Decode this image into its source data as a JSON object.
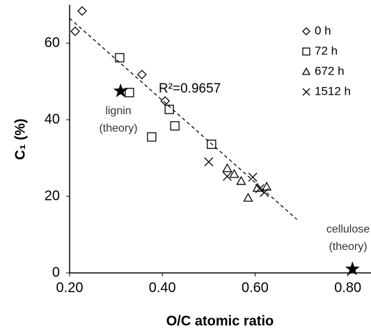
{
  "chart_data": {
    "type": "scatter",
    "xlabel": "O/C atomic ratio",
    "ylabel": "C₁ (%)",
    "xlim": [
      0.2,
      0.85
    ],
    "ylim": [
      0,
      70
    ],
    "xticks": [
      {
        "value": 0.2,
        "label": "0.20"
      },
      {
        "value": 0.4,
        "label": "0.40"
      },
      {
        "value": 0.6,
        "label": "0.60"
      },
      {
        "value": 0.8,
        "label": "0.80"
      }
    ],
    "yticks": [
      0,
      20,
      40,
      60
    ],
    "series": [
      {
        "name": "0 h",
        "marker": "diamond",
        "color": "#000000",
        "x": [
          0.227,
          0.212,
          0.356,
          0.406
        ],
        "values": [
          68.4,
          63.1,
          51.8,
          44.9
        ]
      },
      {
        "name": "72 h",
        "marker": "square",
        "color": "#000000",
        "x": [
          0.308,
          0.329,
          0.415,
          0.427,
          0.377,
          0.506
        ],
        "values": [
          56.2,
          47.1,
          42.7,
          38.4,
          35.5,
          33.6
        ]
      },
      {
        "name": "672 h",
        "marker": "triangle",
        "color": "#000000",
        "x": [
          0.54,
          0.555,
          0.57,
          0.585,
          0.605,
          0.625
        ],
        "values": [
          27.3,
          25.8,
          24.0,
          19.6,
          22.2,
          22.5
        ]
      },
      {
        "name": "1512 h",
        "marker": "x",
        "color": "#000000",
        "x": [
          0.5,
          0.54,
          0.595,
          0.61,
          0.62
        ],
        "values": [
          29.0,
          25.2,
          25.0,
          22.0,
          21.0
        ]
      }
    ],
    "reference_points": [
      {
        "label": [
          "lignin",
          "(theory)"
        ],
        "x": 0.31,
        "value": 47.5
      },
      {
        "label": [
          "cellulose",
          "(theory)"
        ],
        "x": 0.81,
        "value": 1.0
      }
    ],
    "trendline": {
      "label": "R²=0.9657",
      "x": [
        0.2,
        0.69
      ],
      "values": [
        66.5,
        14.0
      ]
    }
  }
}
